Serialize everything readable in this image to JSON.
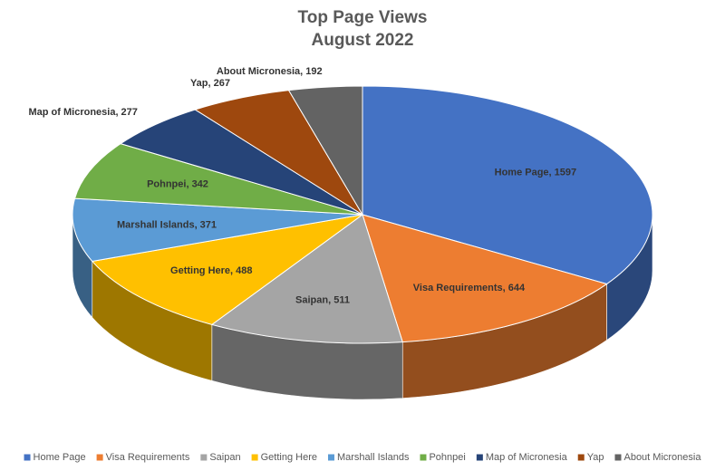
{
  "chart_data": {
    "type": "pie",
    "title": "Top Page Views",
    "subtitle": "August 2022",
    "categories": [
      "Home Page",
      "Visa Requirements",
      "Saipan",
      "Getting Here",
      "Marshall Islands",
      "Pohnpei",
      "Map of Micronesia",
      "Yap",
      "About Micronesia"
    ],
    "values": [
      1597,
      644,
      511,
      488,
      371,
      342,
      277,
      267,
      192
    ],
    "value_labels": [
      "Home Page, 1597",
      "Visa Requirements, 644",
      "Saipan, 511",
      "Getting Here, 488",
      "Marshall Islands, 371",
      "Pohnpei, 342",
      "Map of Micronesia, 277",
      "Yap, 267",
      "About Micronesia, 192"
    ],
    "colors": [
      "#4472c4",
      "#ed7d31",
      "#a5a5a5",
      "#ffc000",
      "#5b9bd5",
      "#70ad47",
      "#264478",
      "#9e480e",
      "#636363"
    ],
    "legend": "bottom"
  }
}
